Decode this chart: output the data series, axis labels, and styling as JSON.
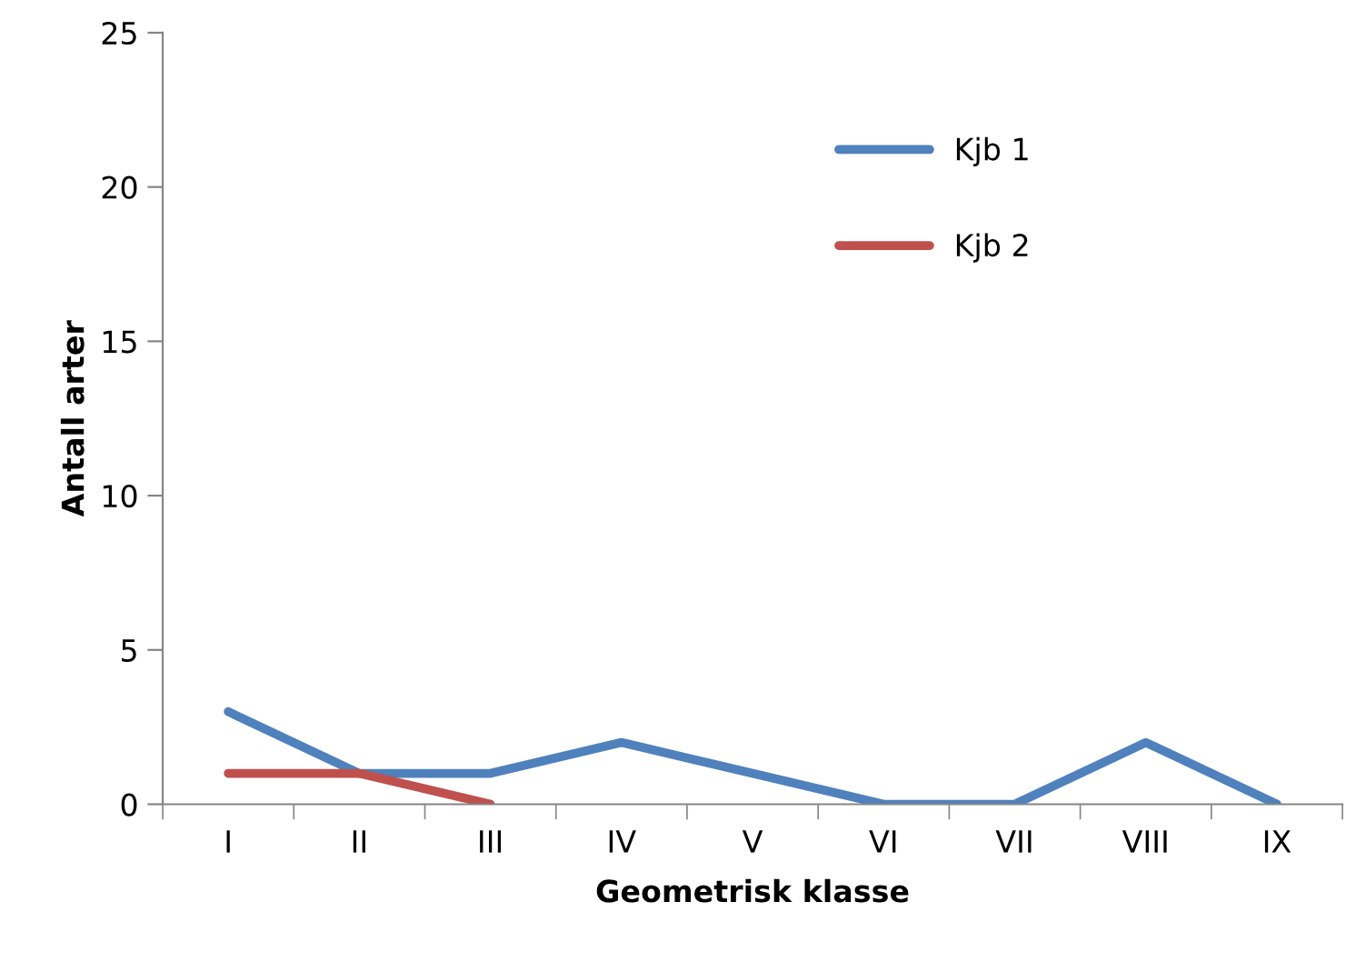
{
  "chart_data": {
    "type": "line",
    "xlabel": "Geometrisk klasse",
    "ylabel": "Antall arter",
    "categories": [
      "I",
      "II",
      "III",
      "IV",
      "V",
      "VI",
      "VII",
      "VIII",
      "IX"
    ],
    "series": [
      {
        "name": "Kjb 1",
        "color": "#4f81bd",
        "values": [
          3,
          1,
          1,
          2,
          1,
          0,
          0,
          2,
          0
        ]
      },
      {
        "name": "Kjb 2",
        "color": "#c0504d",
        "values": [
          1,
          1,
          0,
          null,
          null,
          null,
          null,
          null,
          null
        ]
      }
    ],
    "ylim": [
      0,
      25
    ],
    "yticks": [
      0,
      5,
      10,
      15,
      20,
      25
    ],
    "grid": false,
    "legend": "top",
    "marker": "none",
    "line_style": "solid"
  }
}
